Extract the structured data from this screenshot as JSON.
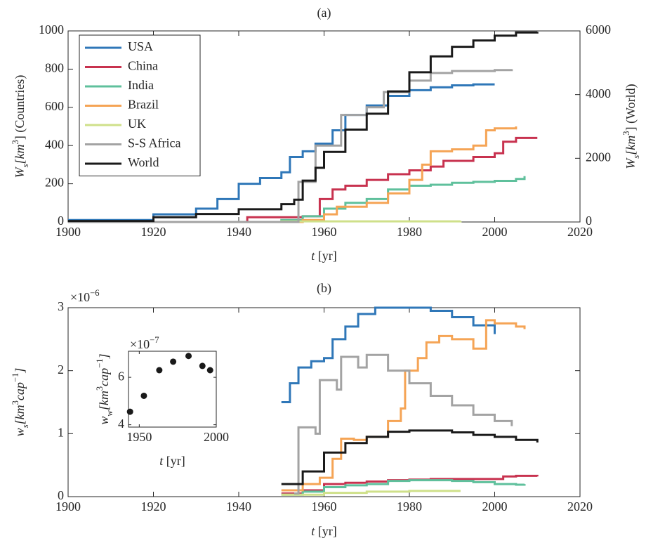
{
  "chart_data": [
    {
      "type": "line",
      "step": true,
      "title": "(a)",
      "xlabel": [
        {
          "text": "t",
          "style": "it"
        },
        {
          "text": " [yr]",
          "style": "rm"
        }
      ],
      "ylabel": [
        {
          "text": "W",
          "style": "it"
        },
        {
          "text": "s",
          "style": "sub"
        },
        {
          "text": "[km",
          "style": "it"
        },
        {
          "text": "3",
          "style": "sup"
        },
        {
          "text": "] (Countries)",
          "style": "rm"
        }
      ],
      "y2label": [
        {
          "text": "W",
          "style": "it"
        },
        {
          "text": "s",
          "style": "sub"
        },
        {
          "text": "[km",
          "style": "it"
        },
        {
          "text": "3",
          "style": "sup"
        },
        {
          "text": "] (World)",
          "style": "rm"
        }
      ],
      "xlim": [
        1900,
        2020
      ],
      "xticks": [
        1900,
        1920,
        1940,
        1960,
        1980,
        2000,
        2020
      ],
      "ylim": [
        0,
        1000
      ],
      "yticks": [
        0,
        200,
        400,
        600,
        800,
        1000
      ],
      "y2lim": [
        0,
        6000
      ],
      "y2ticks": [
        0,
        2000,
        4000,
        6000
      ],
      "legend": "upper left",
      "series": [
        {
          "name": "USA",
          "color": "#2f77b8",
          "x": [
            1900,
            1920,
            1930,
            1935,
            1940,
            1945,
            1950,
            1952,
            1955,
            1958,
            1962,
            1965,
            1970,
            1975,
            1980,
            1985,
            1990,
            1995,
            2000
          ],
          "values": [
            10,
            40,
            70,
            120,
            200,
            230,
            260,
            340,
            370,
            410,
            480,
            560,
            610,
            660,
            690,
            705,
            715,
            720,
            720
          ]
        },
        {
          "name": "China",
          "color": "#c8324f",
          "x": [
            1900,
            1942,
            1955,
            1959,
            1962,
            1965,
            1970,
            1975,
            1980,
            1985,
            1988,
            1995,
            2000,
            2002,
            2005,
            2010
          ],
          "values": [
            0,
            25,
            30,
            120,
            170,
            190,
            220,
            250,
            270,
            290,
            320,
            340,
            360,
            420,
            440,
            440
          ]
        },
        {
          "name": "India",
          "color": "#5fc09c",
          "x": [
            1900,
            1950,
            1955,
            1960,
            1965,
            1970,
            1975,
            1980,
            1985,
            1990,
            1995,
            2000,
            2005,
            2007
          ],
          "values": [
            0,
            10,
            30,
            70,
            100,
            120,
            170,
            190,
            195,
            205,
            210,
            215,
            225,
            240
          ]
        },
        {
          "name": "Brazil",
          "color": "#f5a455",
          "x": [
            1950,
            1955,
            1960,
            1963,
            1970,
            1975,
            1980,
            1983,
            1985,
            1990,
            1995,
            1998,
            2000,
            2005
          ],
          "values": [
            0,
            10,
            40,
            80,
            100,
            150,
            220,
            300,
            370,
            380,
            400,
            480,
            490,
            500
          ]
        },
        {
          "name": "UK",
          "color": "#cfe08a",
          "x": [
            1900,
            1950,
            1992
          ],
          "values": [
            0,
            3,
            5
          ]
        },
        {
          "name": "S-S Africa",
          "color": "#a3a3a3",
          "x": [
            1900,
            1953,
            1954,
            1958,
            1964,
            1970,
            1974,
            1980,
            1985,
            1990,
            1995,
            2000,
            2004
          ],
          "values": [
            0,
            0,
            210,
            400,
            560,
            600,
            680,
            740,
            780,
            790,
            790,
            795,
            800
          ]
        },
        {
          "name": "World",
          "color": "#1a1a1a",
          "axis": "y2",
          "x": [
            1900,
            1920,
            1930,
            1940,
            1950,
            1953,
            1955,
            1958,
            1960,
            1965,
            1970,
            1975,
            1980,
            1985,
            1990,
            1995,
            2000,
            2005,
            2010
          ],
          "values": [
            30,
            150,
            250,
            400,
            560,
            700,
            1300,
            1700,
            2200,
            2900,
            3400,
            4100,
            4700,
            5200,
            5500,
            5700,
            5850,
            5950,
            5970
          ]
        }
      ]
    },
    {
      "type": "line",
      "step": true,
      "title": "(b)",
      "xlabel": [
        {
          "text": "t",
          "style": "it"
        },
        {
          "text": " [yr]",
          "style": "rm"
        }
      ],
      "ylabel": [
        {
          "text": "w",
          "style": "it"
        },
        {
          "text": "s",
          "style": "sub"
        },
        {
          "text": "[km",
          "style": "it"
        },
        {
          "text": "3",
          "style": "sup"
        },
        {
          "text": "cap",
          "style": "it"
        },
        {
          "text": "−1",
          "style": "sup"
        },
        {
          "text": "]",
          "style": "it"
        }
      ],
      "multiplier": [
        {
          "text": "×10",
          "style": "rm"
        },
        {
          "text": "−6",
          "style": "sup"
        }
      ],
      "xlim": [
        1900,
        2020
      ],
      "xticks": [
        1900,
        1920,
        1940,
        1960,
        1980,
        2000,
        2020
      ],
      "ylim": [
        0,
        3
      ],
      "yticks": [
        0,
        1,
        2,
        3
      ],
      "series": [
        {
          "name": "USA",
          "color": "#2f77b8",
          "x": [
            1950,
            1952,
            1954,
            1957,
            1960,
            1962,
            1965,
            1968,
            1972,
            1975,
            1980,
            1985,
            1990,
            1995,
            2000
          ],
          "values": [
            1.5,
            1.8,
            2.05,
            2.15,
            2.2,
            2.5,
            2.7,
            2.9,
            3.0,
            3.0,
            3.0,
            2.95,
            2.85,
            2.72,
            2.58
          ]
        },
        {
          "name": "China",
          "color": "#c8324f",
          "x": [
            1950,
            1955,
            1960,
            1965,
            1970,
            1975,
            1980,
            1985,
            1990,
            1995,
            2000,
            2002,
            2005,
            2010
          ],
          "values": [
            0.05,
            0.1,
            0.2,
            0.22,
            0.24,
            0.26,
            0.27,
            0.28,
            0.28,
            0.28,
            0.28,
            0.32,
            0.33,
            0.32
          ]
        },
        {
          "name": "India",
          "color": "#5fc09c",
          "x": [
            1950,
            1955,
            1960,
            1965,
            1970,
            1975,
            1980,
            1985,
            1990,
            1995,
            2000,
            2005,
            2007
          ],
          "values": [
            0.03,
            0.08,
            0.15,
            0.18,
            0.2,
            0.25,
            0.26,
            0.26,
            0.25,
            0.23,
            0.2,
            0.19,
            0.2
          ]
        },
        {
          "name": "Brazil",
          "color": "#f5a455",
          "x": [
            1950,
            1955,
            1959,
            1962,
            1964,
            1967,
            1970,
            1975,
            1978,
            1979,
            1982,
            1984,
            1987,
            1990,
            1995,
            1998,
            2000,
            2005,
            2007
          ],
          "values": [
            0.1,
            0.2,
            0.3,
            0.6,
            0.92,
            0.9,
            0.95,
            1.2,
            1.4,
            2.0,
            2.2,
            2.45,
            2.55,
            2.5,
            2.35,
            2.8,
            2.75,
            2.7,
            2.66
          ]
        },
        {
          "name": "UK",
          "color": "#cfe08a",
          "x": [
            1950,
            1960,
            1970,
            1980,
            1992
          ],
          "values": [
            0.03,
            0.06,
            0.08,
            0.09,
            0.09
          ]
        },
        {
          "name": "S-S Africa",
          "color": "#a3a3a3",
          "x": [
            1953,
            1954,
            1958,
            1959,
            1963,
            1964,
            1968,
            1970,
            1975,
            1980,
            1985,
            1990,
            1995,
            2000,
            2004
          ],
          "values": [
            0.05,
            1.1,
            1.0,
            1.85,
            1.7,
            2.22,
            2.05,
            2.25,
            2.0,
            1.8,
            1.6,
            1.45,
            1.3,
            1.2,
            1.12
          ]
        },
        {
          "name": "World",
          "color": "#1a1a1a",
          "x": [
            1950,
            1955,
            1960,
            1965,
            1970,
            1975,
            1980,
            1985,
            1990,
            1995,
            2000,
            2005,
            2010
          ],
          "values": [
            0.2,
            0.4,
            0.7,
            0.85,
            0.95,
            1.03,
            1.05,
            1.05,
            1.02,
            0.98,
            0.95,
            0.9,
            0.86
          ]
        }
      ]
    },
    {
      "type": "scatter",
      "xlabel": [
        {
          "text": "t",
          "style": "it"
        },
        {
          "text": " [yr]",
          "style": "rm"
        }
      ],
      "ylabel": [
        {
          "text": "w",
          "style": "it"
        },
        {
          "text": "w",
          "style": "sub"
        },
        {
          "text": "[km",
          "style": "it"
        },
        {
          "text": "3",
          "style": "sup"
        },
        {
          "text": "cap",
          "style": "it"
        },
        {
          "text": "−1",
          "style": "sup"
        },
        {
          "text": "]",
          "style": "it"
        }
      ],
      "multiplier": [
        {
          "text": "×10",
          "style": "rm"
        },
        {
          "text": "−7",
          "style": "sup"
        }
      ],
      "xlim": [
        1943,
        2000
      ],
      "xticks": [
        1950,
        2000
      ],
      "ylim": [
        3.9,
        7.1
      ],
      "yticks": [
        4,
        6
      ],
      "color": "#1a1a1a",
      "x": [
        1944,
        1953,
        1963,
        1972,
        1982,
        1991,
        1996
      ],
      "values": [
        4.55,
        5.22,
        6.3,
        6.66,
        6.9,
        6.48,
        6.3
      ]
    }
  ]
}
